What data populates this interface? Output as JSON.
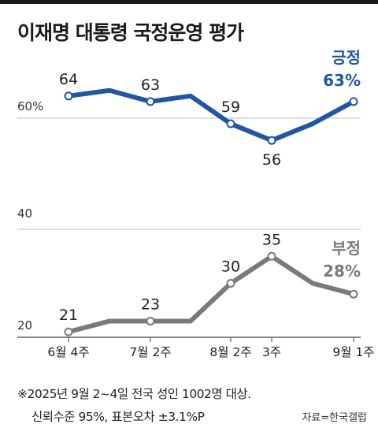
{
  "title": "이재명 대통령 국정운영 평가",
  "chart_data": {
    "type": "line",
    "categories": [
      "6월 4주",
      "",
      "7월 2주",
      "",
      "8월 2주",
      "3주",
      "",
      "9월 1주"
    ],
    "y_tick_labels": {
      "positive_panel": [
        "60%",
        "40"
      ],
      "negative_panel": [
        "20"
      ]
    },
    "series": [
      {
        "name": "긍정",
        "values": [
          64,
          65,
          63,
          64,
          59,
          56,
          59,
          63
        ],
        "labeled_indices": [
          0,
          2,
          4,
          5
        ],
        "end_label": "63%",
        "color": "#2156a5"
      },
      {
        "name": "부정",
        "values": [
          21,
          23,
          23,
          23,
          30,
          35,
          30,
          28
        ],
        "labeled_indices": [
          0,
          2,
          4,
          5
        ],
        "end_label": "28%",
        "color": "#7a7a7a"
      }
    ]
  },
  "footnote": {
    "line1": "※2025년 9월 2~4일 전국 성인 1002명 대상.",
    "line2": "신뢰수준 95%, 표본오차 ±3.1%P"
  },
  "source": "자료=한국갤럽"
}
